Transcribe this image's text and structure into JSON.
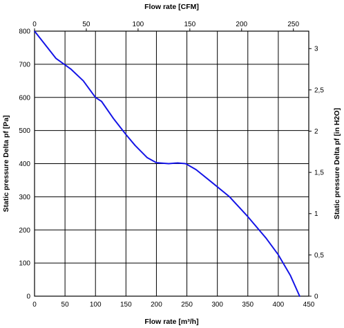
{
  "chart_data": {
    "type": "line",
    "xlabel_bottom": "Flow rate [m³/h]",
    "xlabel_top": "Flow rate [CFM]",
    "ylabel_left": "Static pressure Delta pf [Pa]",
    "ylabel_right": "Static pressure Delta pf [in H2O]",
    "xlim": [
      0,
      450
    ],
    "ylim": [
      0,
      800
    ],
    "x_ticks": [
      "0",
      "50",
      "100",
      "150",
      "200",
      "250",
      "300",
      "350",
      "400",
      "450"
    ],
    "x_ticks_top": [
      "0",
      "50",
      "100",
      "150",
      "200",
      "250"
    ],
    "y_ticks": [
      "0",
      "100",
      "200",
      "300",
      "400",
      "500",
      "600",
      "700",
      "800"
    ],
    "y_ticks_right": [
      "0",
      "0,5",
      "1",
      "1,5",
      "2",
      "2,5",
      "3"
    ],
    "grid": true,
    "line_color": "#1414e6",
    "series": [
      {
        "x": [
          0,
          15,
          35,
          60,
          80,
          100,
          110,
          130,
          150,
          165,
          185,
          200,
          220,
          235,
          248,
          265,
          290,
          320,
          350,
          380,
          400,
          420,
          435
        ],
        "y": [
          800,
          765,
          718,
          685,
          650,
          600,
          588,
          535,
          488,
          455,
          418,
          403,
          400,
          402,
          400,
          382,
          345,
          300,
          240,
          175,
          125,
          62,
          0
        ]
      }
    ]
  }
}
